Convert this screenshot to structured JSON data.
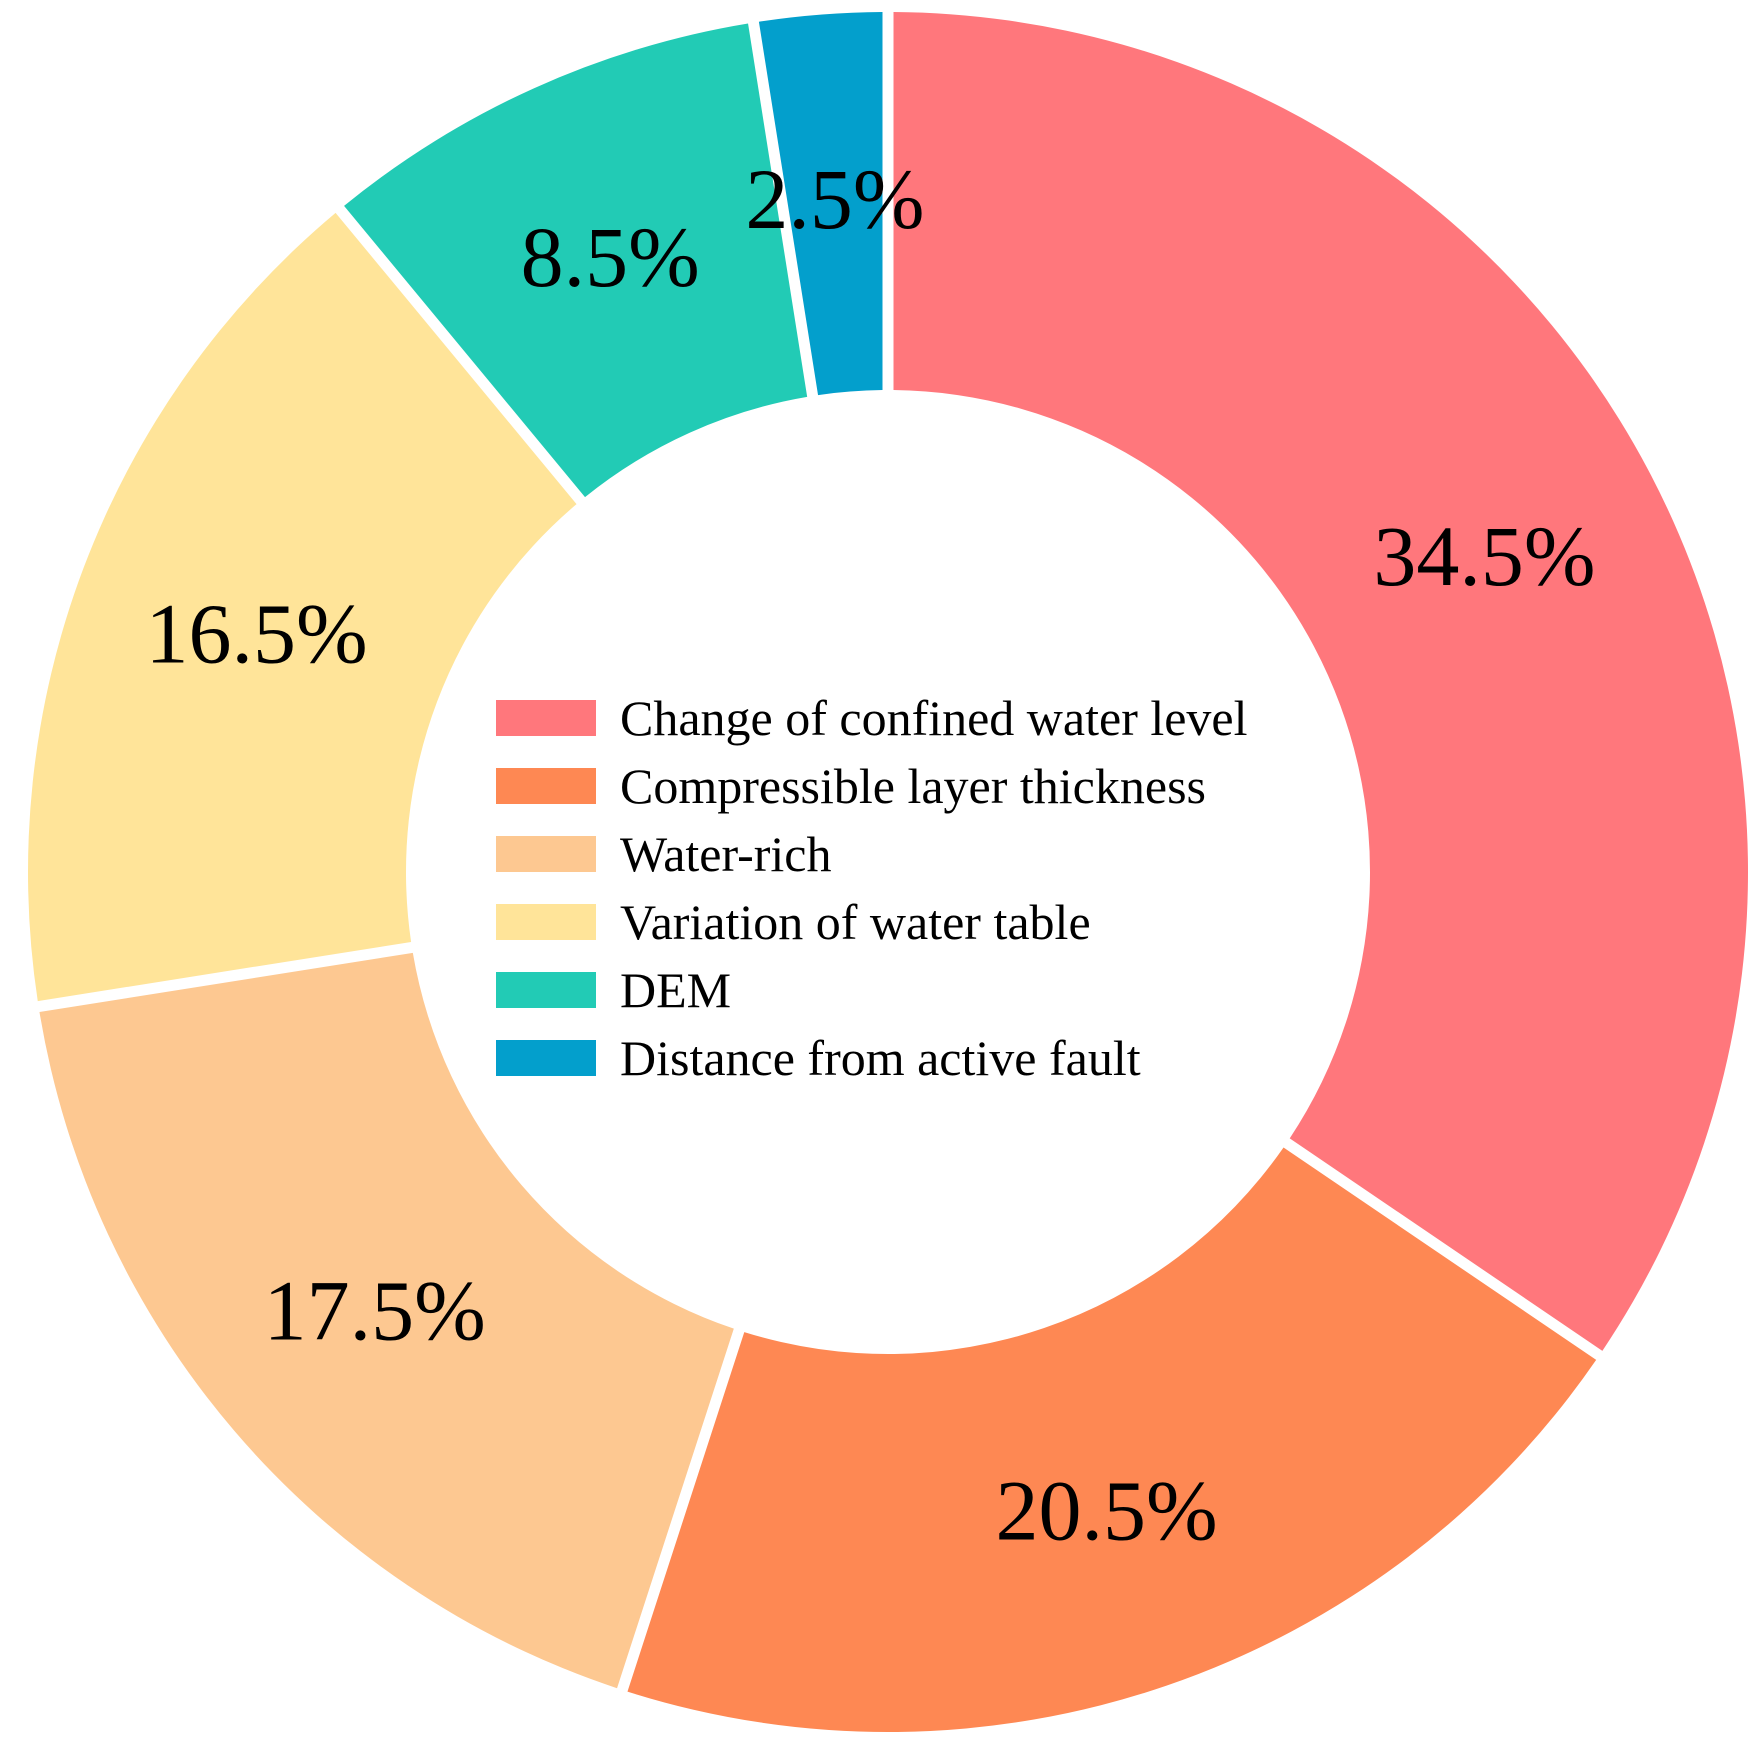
{
  "chart_data": {
    "type": "pie",
    "variant": "donut",
    "legend_position": "center",
    "slices": [
      {
        "label": "Change of confined water level",
        "value": 34.5,
        "display": "34.5%",
        "color": "#FF777C"
      },
      {
        "label": "Compressible layer thickness",
        "value": 20.5,
        "display": "20.5%",
        "color": "#FE8853"
      },
      {
        "label": "Water-rich",
        "value": 17.5,
        "display": "17.5%",
        "color": "#FDC891"
      },
      {
        "label": "Variation of water table",
        "value": 16.5,
        "display": "16.5%",
        "color": "#FFE499"
      },
      {
        "label": "DEM",
        "value": 8.5,
        "display": "8.5%",
        "color": "#22CBB5"
      },
      {
        "label": "Distance from active fault",
        "value": 2.5,
        "display": "2.5%",
        "color": "#039FCC"
      }
    ]
  }
}
